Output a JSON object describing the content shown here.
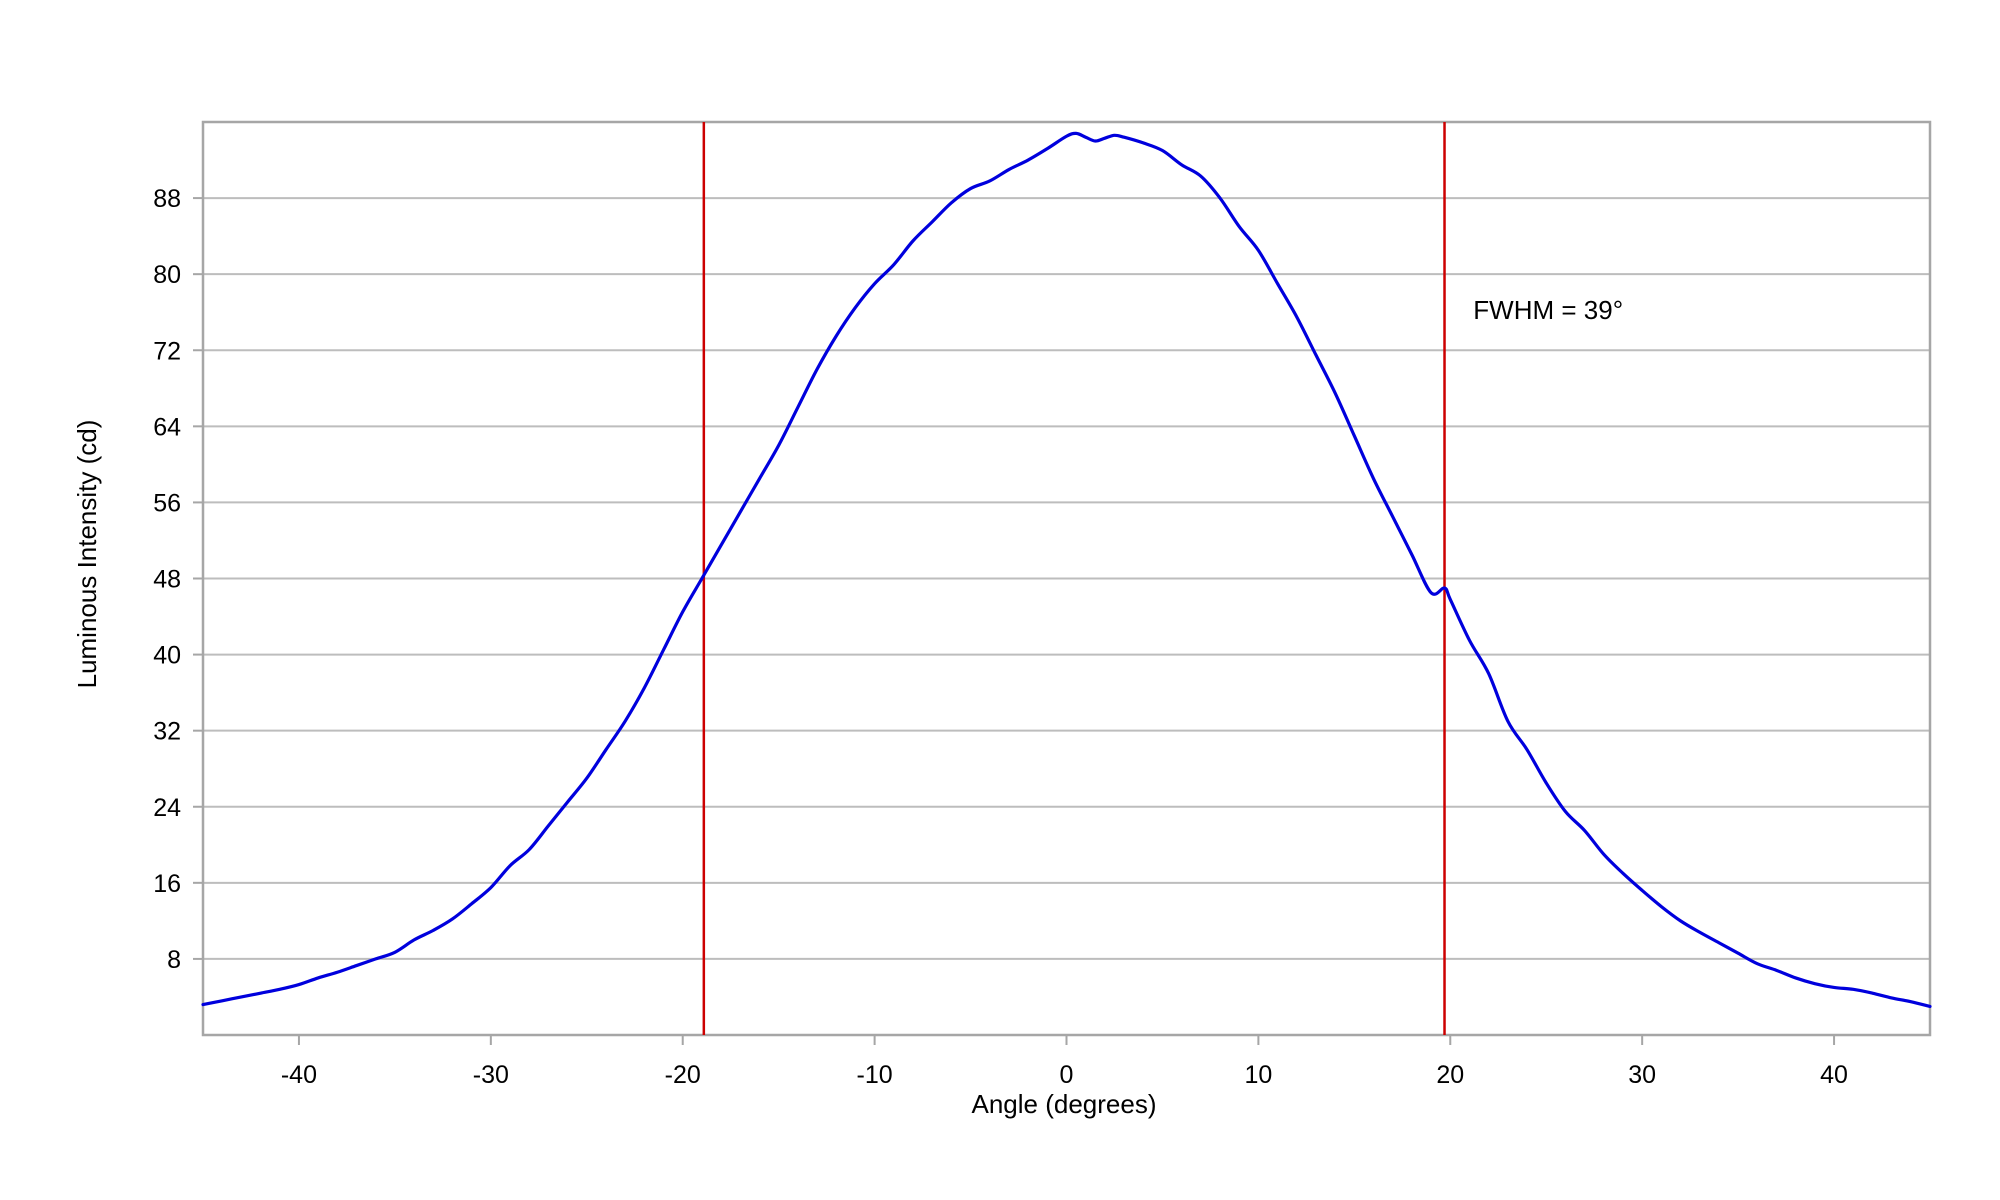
{
  "chart_data": {
    "type": "line",
    "title": "",
    "xlabel": "Angle (degrees)",
    "ylabel": "Luminous Intensity (cd)",
    "xlim": [
      -45,
      45
    ],
    "ylim": [
      0,
      96
    ],
    "x_ticks": [
      -40,
      -30,
      -20,
      -10,
      0,
      10,
      20,
      30,
      40
    ],
    "y_ticks": [
      8,
      16,
      24,
      32,
      40,
      48,
      56,
      64,
      72,
      80,
      88
    ],
    "grid": "horizontal",
    "legend": "none",
    "series": [
      {
        "color": "#0000dd",
        "x": [
          -45,
          -44,
          -43,
          -42,
          -41,
          -40,
          -39,
          -38,
          -37,
          -36,
          -35,
          -34,
          -33,
          -32,
          -31,
          -30,
          -29,
          -28,
          -27,
          -26,
          -25,
          -24,
          -23,
          -22,
          -21,
          -20,
          -19,
          -18,
          -17,
          -16,
          -15,
          -14,
          -13,
          -12,
          -11,
          -10,
          -9,
          -8,
          -7,
          -6,
          -5,
          -4,
          -3,
          -2,
          -1,
          0,
          0.5,
          1,
          1.5,
          2,
          2.5,
          3,
          4,
          5,
          6,
          7,
          8,
          9,
          10,
          11,
          12,
          13,
          14,
          15,
          16,
          17,
          18,
          19,
          19.7,
          20,
          21,
          22,
          23,
          24,
          25,
          26,
          27,
          28,
          29,
          30,
          31,
          32,
          33,
          34,
          35,
          36,
          37,
          38,
          39,
          40,
          41,
          42,
          43,
          44,
          45
        ],
        "y": [
          3.2,
          3.6,
          4.0,
          4.4,
          4.8,
          5.3,
          6.0,
          6.6,
          7.3,
          8.0,
          8.7,
          10.0,
          11.0,
          12.2,
          13.8,
          15.5,
          17.8,
          19.5,
          22.0,
          24.5,
          27.0,
          30.0,
          33.0,
          36.5,
          40.5,
          44.5,
          48.0,
          51.5,
          55.0,
          58.5,
          62.0,
          66.0,
          70.0,
          73.5,
          76.5,
          79.0,
          81.0,
          83.5,
          85.5,
          87.5,
          89.0,
          89.8,
          91.0,
          92.0,
          93.2,
          94.5,
          94.8,
          94.4,
          94.0,
          94.3,
          94.6,
          94.4,
          93.8,
          93.0,
          91.5,
          90.3,
          88.0,
          85.0,
          82.5,
          79.0,
          75.5,
          71.5,
          67.5,
          63.0,
          58.5,
          54.5,
          50.5,
          46.5,
          47.0,
          45.8,
          41.5,
          38.0,
          33.0,
          30.0,
          26.5,
          23.5,
          21.5,
          19.0,
          17.0,
          15.2,
          13.5,
          12.0,
          10.8,
          9.7,
          8.6,
          7.5,
          6.8,
          6.0,
          5.4,
          5.0,
          4.8,
          4.4,
          3.9,
          3.5,
          3.0
        ]
      }
    ],
    "vertical_lines": [
      {
        "x": -18.9,
        "color": "#cc0000"
      },
      {
        "x": 19.7,
        "color": "#cc0000"
      }
    ],
    "annotations": [
      {
        "text": "FWHM = 39°",
        "x": 21.2,
        "y": 75.3
      }
    ]
  }
}
